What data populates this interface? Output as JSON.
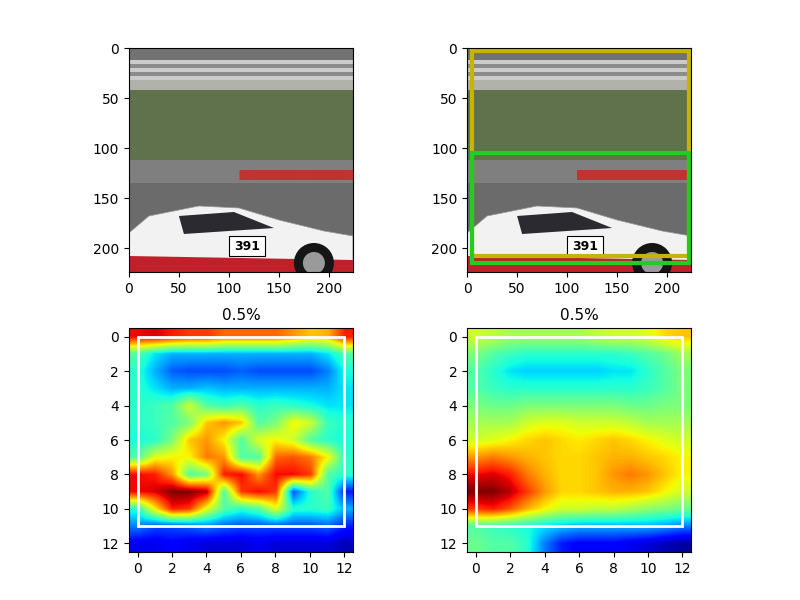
{
  "chart_data": [
    {
      "type": "image",
      "xlim": [
        0,
        224
      ],
      "ylim": [
        224,
        0
      ],
      "xticks": [
        0,
        50,
        100,
        150,
        200
      ],
      "yticks": [
        0,
        50,
        100,
        150,
        200
      ],
      "car_number": "391"
    },
    {
      "type": "image",
      "xlim": [
        0,
        224
      ],
      "ylim": [
        224,
        0
      ],
      "xticks": [
        0,
        50,
        100,
        150,
        200
      ],
      "yticks": [
        0,
        50,
        100,
        150,
        200
      ],
      "car_number": "391",
      "boxes": [
        {
          "color": "#c8b400",
          "x": [
            5,
            222
          ],
          "y": [
            3,
            208
          ]
        },
        {
          "color": "#22cc22",
          "x": [
            5,
            222
          ],
          "y": [
            105,
            215
          ]
        }
      ]
    },
    {
      "type": "heatmap",
      "title": "0.5%",
      "xlim": [
        -0.5,
        12.5
      ],
      "ylim": [
        12.5,
        -0.5
      ],
      "xticks": [
        0,
        2,
        4,
        6,
        8,
        10,
        12
      ],
      "yticks": [
        0,
        2,
        4,
        6,
        8,
        10,
        12
      ],
      "color_range": [
        0,
        1
      ],
      "box": {
        "x": [
          0,
          12
        ],
        "y": [
          0,
          11
        ],
        "color": "white"
      },
      "cells": [
        [
          0.9,
          0.92,
          0.88,
          0.85,
          0.85,
          0.8,
          0.8,
          0.8,
          0.8,
          0.75,
          0.7,
          0.72,
          0.88
        ],
        [
          0.45,
          0.35,
          0.3,
          0.3,
          0.3,
          0.3,
          0.3,
          0.3,
          0.3,
          0.3,
          0.3,
          0.35,
          0.45
        ],
        [
          0.4,
          0.3,
          0.22,
          0.2,
          0.2,
          0.2,
          0.22,
          0.2,
          0.2,
          0.2,
          0.2,
          0.25,
          0.38
        ],
        [
          0.4,
          0.35,
          0.3,
          0.3,
          0.32,
          0.3,
          0.3,
          0.3,
          0.3,
          0.3,
          0.3,
          0.3,
          0.35
        ],
        [
          0.4,
          0.42,
          0.45,
          0.6,
          0.45,
          0.42,
          0.45,
          0.4,
          0.42,
          0.4,
          0.38,
          0.35,
          0.35
        ],
        [
          0.4,
          0.42,
          0.45,
          0.5,
          0.7,
          0.75,
          0.7,
          0.45,
          0.5,
          0.65,
          0.6,
          0.42,
          0.4
        ],
        [
          0.38,
          0.4,
          0.5,
          0.7,
          0.75,
          0.65,
          0.45,
          0.62,
          0.65,
          0.6,
          0.45,
          0.4,
          0.38
        ],
        [
          0.45,
          0.62,
          0.65,
          0.65,
          0.78,
          0.75,
          0.45,
          0.45,
          0.8,
          0.82,
          0.78,
          0.65,
          0.4
        ],
        [
          0.9,
          0.88,
          0.75,
          0.45,
          0.5,
          0.88,
          0.9,
          0.75,
          0.9,
          0.9,
          0.85,
          0.45,
          0.4
        ],
        [
          0.9,
          0.92,
          1.0,
          1.0,
          0.95,
          0.45,
          0.85,
          0.9,
          0.85,
          0.2,
          0.4,
          0.45,
          0.15
        ],
        [
          0.4,
          0.65,
          0.88,
          0.85,
          0.62,
          0.45,
          0.4,
          0.45,
          0.62,
          0.4,
          0.4,
          0.42,
          0.3
        ],
        [
          0.25,
          0.2,
          0.2,
          0.22,
          0.25,
          0.22,
          0.2,
          0.2,
          0.2,
          0.2,
          0.2,
          0.22,
          0.15
        ],
        [
          0.1,
          0.1,
          0.12,
          0.1,
          0.08,
          0.08,
          0.08,
          0.1,
          0.08,
          0.08,
          0.08,
          0.08,
          0.05
        ]
      ]
    },
    {
      "type": "heatmap",
      "title": "0.5%",
      "xlim": [
        -0.5,
        12.5
      ],
      "ylim": [
        12.5,
        -0.5
      ],
      "xticks": [
        0,
        2,
        4,
        6,
        8,
        10,
        12
      ],
      "yticks": [
        0,
        2,
        4,
        6,
        8,
        10,
        12
      ],
      "color_range": [
        0,
        1
      ],
      "box": {
        "x": [
          0,
          12
        ],
        "y": [
          0,
          11
        ],
        "color": "white"
      },
      "cells": [
        [
          0.6,
          0.58,
          0.55,
          0.55,
          0.55,
          0.55,
          0.55,
          0.58,
          0.6,
          0.6,
          0.62,
          0.68,
          0.7
        ],
        [
          0.5,
          0.45,
          0.42,
          0.4,
          0.4,
          0.4,
          0.4,
          0.4,
          0.4,
          0.42,
          0.45,
          0.48,
          0.55
        ],
        [
          0.45,
          0.4,
          0.35,
          0.33,
          0.33,
          0.33,
          0.33,
          0.33,
          0.35,
          0.35,
          0.4,
          0.45,
          0.5
        ],
        [
          0.45,
          0.42,
          0.4,
          0.4,
          0.4,
          0.4,
          0.4,
          0.4,
          0.4,
          0.4,
          0.42,
          0.45,
          0.5
        ],
        [
          0.5,
          0.48,
          0.48,
          0.5,
          0.5,
          0.5,
          0.5,
          0.5,
          0.5,
          0.48,
          0.48,
          0.5,
          0.5
        ],
        [
          0.55,
          0.55,
          0.55,
          0.6,
          0.62,
          0.62,
          0.6,
          0.6,
          0.6,
          0.58,
          0.55,
          0.55,
          0.55
        ],
        [
          0.6,
          0.62,
          0.65,
          0.68,
          0.7,
          0.68,
          0.66,
          0.68,
          0.7,
          0.68,
          0.65,
          0.62,
          0.6
        ],
        [
          0.75,
          0.78,
          0.75,
          0.72,
          0.7,
          0.68,
          0.68,
          0.7,
          0.72,
          0.72,
          0.7,
          0.68,
          0.65
        ],
        [
          0.9,
          0.92,
          0.88,
          0.78,
          0.72,
          0.68,
          0.68,
          0.7,
          0.75,
          0.78,
          0.75,
          0.7,
          0.65
        ],
        [
          1.0,
          1.0,
          0.95,
          0.85,
          0.75,
          0.68,
          0.68,
          0.7,
          0.72,
          0.72,
          0.7,
          0.65,
          0.6
        ],
        [
          0.85,
          0.88,
          0.82,
          0.72,
          0.65,
          0.6,
          0.6,
          0.58,
          0.58,
          0.55,
          0.52,
          0.5,
          0.48
        ],
        [
          0.45,
          0.42,
          0.4,
          0.38,
          0.35,
          0.32,
          0.3,
          0.3,
          0.3,
          0.3,
          0.3,
          0.28,
          0.25
        ],
        [
          0.48,
          0.45,
          0.45,
          0.4,
          0.25,
          0.15,
          0.12,
          0.12,
          0.12,
          0.1,
          0.08,
          0.05,
          0.03
        ]
      ]
    }
  ]
}
